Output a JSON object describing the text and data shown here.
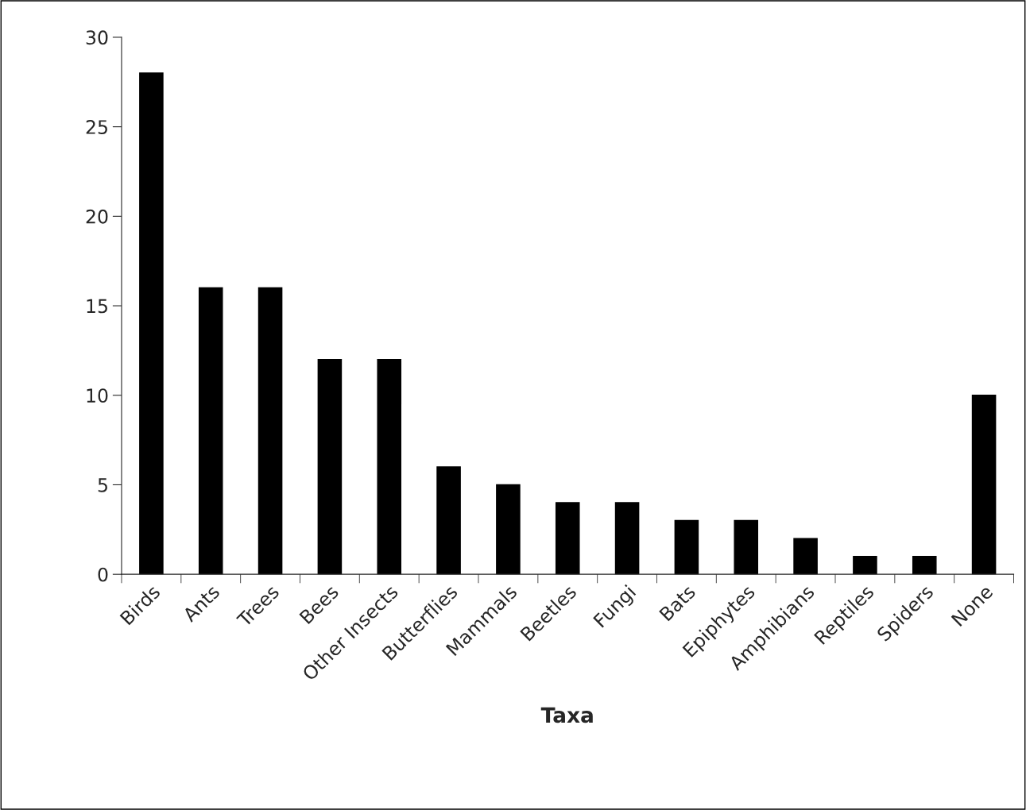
{
  "chart_data": {
    "type": "bar",
    "xlabel": "Taxa",
    "categories": [
      "Birds",
      "Ants",
      "Trees",
      "Bees",
      "Other Insects",
      "Butterflies",
      "Mammals",
      "Beetles",
      "Fungi",
      "Bats",
      "Epiphytes",
      "Amphibians",
      "Reptiles",
      "Spiders",
      "None"
    ],
    "values": [
      28,
      16,
      16,
      12,
      12,
      6,
      5,
      4,
      4,
      3,
      3,
      2,
      1,
      1,
      10
    ],
    "color": "#000000",
    "ylim": [
      0,
      30
    ],
    "yticks": [
      0,
      5,
      10,
      15,
      20,
      25,
      30
    ],
    "grid": false,
    "legend": false
  }
}
